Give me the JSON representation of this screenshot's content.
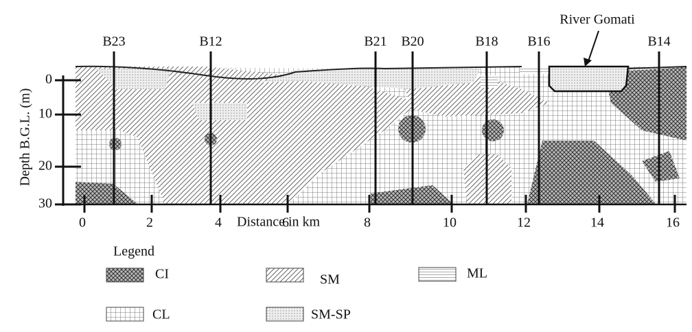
{
  "boreholes": [
    "B23",
    "B12",
    "B21",
    "B20",
    "B18",
    "B16",
    "B14"
  ],
  "annotation": "River Gomati",
  "y_axis": {
    "label": "Depth B.G.L. (m)",
    "ticks": [
      "0",
      "10",
      "20",
      "30"
    ]
  },
  "x_axis": {
    "label": "Distance in km",
    "ticks": [
      "0",
      "2",
      "4",
      "6",
      "8",
      "10",
      "12",
      "14",
      "16"
    ]
  },
  "legend": {
    "title": "Legend",
    "items": [
      "CI",
      "SM",
      "ML",
      "CL",
      "SM-SP"
    ]
  }
}
